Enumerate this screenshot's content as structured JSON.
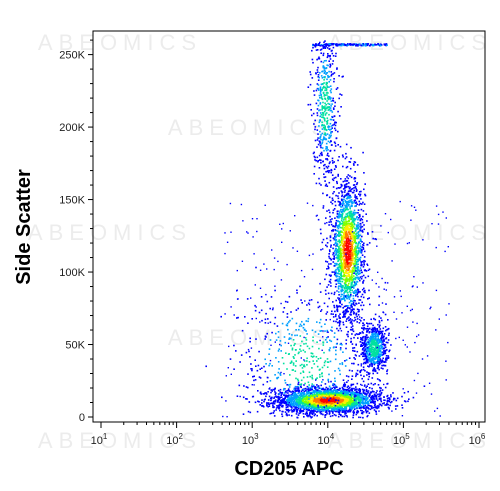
{
  "chart_data": {
    "type": "scatter",
    "style": "flow-cytometry pseudocolor density plot",
    "xlabel": "CD205 APC",
    "ylabel": "Side Scatter",
    "x_scale": "log",
    "xlim": [
      10,
      1000000
    ],
    "ylim": [
      0,
      262144
    ],
    "x_ticks": [
      {
        "value": 10,
        "base": "10",
        "exp": "1"
      },
      {
        "value": 100,
        "base": "10",
        "exp": "2"
      },
      {
        "value": 1000,
        "base": "10",
        "exp": "3"
      },
      {
        "value": 10000,
        "base": "10",
        "exp": "4"
      },
      {
        "value": 100000,
        "base": "10",
        "exp": "5"
      },
      {
        "value": 1000000,
        "base": "10",
        "exp": "6"
      }
    ],
    "y_ticks": [
      {
        "value": 0,
        "label": "0"
      },
      {
        "value": 50000,
        "label": "50K"
      },
      {
        "value": 100000,
        "label": "100K"
      },
      {
        "value": 150000,
        "label": "150K"
      },
      {
        "value": 200000,
        "label": "200K"
      },
      {
        "value": 250000,
        "label": "250K"
      }
    ],
    "density_colors": [
      "#0000ff",
      "#00a0ff",
      "#00e0a0",
      "#80ff00",
      "#ffee00",
      "#ff7a00",
      "#ff0000"
    ],
    "populations": [
      {
        "cx": 10000,
        "cy": 12000,
        "sx": 0.35,
        "sy": 4500,
        "n": 2600,
        "core": true
      },
      {
        "cx": 18000,
        "cy": 115000,
        "sx": 0.11,
        "sy": 24000,
        "n": 1800,
        "core": true
      },
      {
        "cx": 40000,
        "cy": 48000,
        "sx": 0.09,
        "sy": 9000,
        "n": 650,
        "core": false
      },
      {
        "cx": 9000,
        "cy": 215000,
        "sx": 0.08,
        "sy": 28000,
        "n": 500,
        "core": false
      },
      {
        "cx": 5000,
        "cy": 40000,
        "sx": 0.45,
        "sy": 25000,
        "n": 500,
        "core": false
      }
    ],
    "saturation_row": {
      "y": 258000,
      "x_from": 6000,
      "x_to": 60000
    },
    "watermark": "ABEOMICS"
  }
}
